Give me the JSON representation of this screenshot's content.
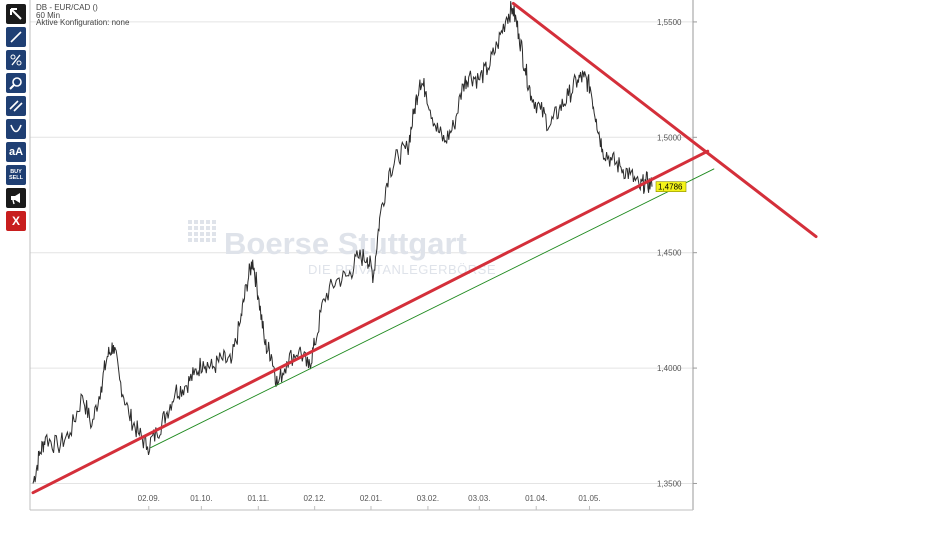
{
  "header": {
    "instrument": "DB - EUR/CAD ()",
    "interval": "60 Min",
    "config": "Aktive Konfiguration: none"
  },
  "watermark": {
    "main": "Boerse Stuttgart",
    "sub": "DIE PRIVATANLEGERBÖRSE"
  },
  "toolbar": {
    "text_tool_label": "aA",
    "buy_label": "BUY",
    "sell_label": "SELL",
    "close_label": "X"
  },
  "chart_data": {
    "type": "line",
    "title": "DB - EUR/CAD ()",
    "interval": "60 Min",
    "ylim": [
      1.3385,
      1.5595
    ],
    "y_ticks": [
      {
        "value": 1.55,
        "label": "1,5500"
      },
      {
        "value": 1.5,
        "label": "1,5000"
      },
      {
        "value": 1.45,
        "label": "1,4500"
      },
      {
        "value": 1.4,
        "label": "1,4000"
      },
      {
        "value": 1.35,
        "label": "1,3500"
      }
    ],
    "x_ticks": [
      {
        "label": "02.09.",
        "t": 0.187
      },
      {
        "label": "01.10.",
        "t": 0.272
      },
      {
        "label": "01.11.",
        "t": 0.364
      },
      {
        "label": "02.12.",
        "t": 0.455
      },
      {
        "label": "02.01.",
        "t": 0.546
      },
      {
        "label": "03.02.",
        "t": 0.638
      },
      {
        "label": "03.03.",
        "t": 0.721
      },
      {
        "label": "01.04.",
        "t": 0.813
      },
      {
        "label": "01.05.",
        "t": 0.899
      }
    ],
    "grid": true,
    "last_value": {
      "value": 1.4786,
      "label": "1,4786"
    },
    "series": [
      {
        "type": "price",
        "color": "#2b2b2b",
        "points": [
          [
            0.0,
            1.35
          ],
          [
            0.01,
            1.362
          ],
          [
            0.02,
            1.37
          ],
          [
            0.04,
            1.366
          ],
          [
            0.06,
            1.372
          ],
          [
            0.08,
            1.388
          ],
          [
            0.095,
            1.375
          ],
          [
            0.11,
            1.392
          ],
          [
            0.12,
            1.405
          ],
          [
            0.13,
            1.41
          ],
          [
            0.14,
            1.395
          ],
          [
            0.155,
            1.38
          ],
          [
            0.17,
            1.372
          ],
          [
            0.185,
            1.366
          ],
          [
            0.2,
            1.372
          ],
          [
            0.215,
            1.38
          ],
          [
            0.23,
            1.39
          ],
          [
            0.245,
            1.392
          ],
          [
            0.26,
            1.397
          ],
          [
            0.275,
            1.403
          ],
          [
            0.29,
            1.4
          ],
          [
            0.305,
            1.404
          ],
          [
            0.32,
            1.402
          ],
          [
            0.335,
            1.42
          ],
          [
            0.345,
            1.436
          ],
          [
            0.355,
            1.447
          ],
          [
            0.365,
            1.43
          ],
          [
            0.375,
            1.41
          ],
          [
            0.385,
            1.406
          ],
          [
            0.395,
            1.393
          ],
          [
            0.41,
            1.403
          ],
          [
            0.43,
            1.408
          ],
          [
            0.445,
            1.4
          ],
          [
            0.455,
            1.41
          ],
          [
            0.47,
            1.43
          ],
          [
            0.49,
            1.438
          ],
          [
            0.51,
            1.44
          ],
          [
            0.525,
            1.448
          ],
          [
            0.54,
            1.448
          ],
          [
            0.55,
            1.44
          ],
          [
            0.56,
            1.465
          ],
          [
            0.575,
            1.485
          ],
          [
            0.59,
            1.492
          ],
          [
            0.605,
            1.495
          ],
          [
            0.615,
            1.51
          ],
          [
            0.625,
            1.525
          ],
          [
            0.635,
            1.52
          ],
          [
            0.65,
            1.505
          ],
          [
            0.665,
            1.498
          ],
          [
            0.68,
            1.505
          ],
          [
            0.695,
            1.523
          ],
          [
            0.705,
            1.527
          ],
          [
            0.72,
            1.525
          ],
          [
            0.735,
            1.53
          ],
          [
            0.75,
            1.54
          ],
          [
            0.765,
            1.552
          ],
          [
            0.775,
            1.556
          ],
          [
            0.785,
            1.545
          ],
          [
            0.795,
            1.53
          ],
          [
            0.805,
            1.518
          ],
          [
            0.82,
            1.512
          ],
          [
            0.835,
            1.505
          ],
          [
            0.85,
            1.512
          ],
          [
            0.865,
            1.518
          ],
          [
            0.88,
            1.525
          ],
          [
            0.89,
            1.526
          ],
          [
            0.9,
            1.522
          ],
          [
            0.91,
            1.508
          ],
          [
            0.92,
            1.495
          ],
          [
            0.935,
            1.49
          ],
          [
            0.95,
            1.487
          ],
          [
            0.965,
            1.484
          ],
          [
            0.98,
            1.478
          ],
          [
            0.99,
            1.481
          ],
          [
            1.0,
            1.4786
          ]
        ]
      }
    ],
    "trendlines": [
      {
        "name": "support-trendline",
        "color": "#d42f3a",
        "points": [
          [
            0.0,
            1.346
          ],
          [
            1.09,
            1.494
          ]
        ]
      },
      {
        "name": "resistance-trendline",
        "color": "#d42f3a",
        "points": [
          [
            0.776,
            1.558
          ],
          [
            1.265,
            1.457
          ]
        ]
      },
      {
        "name": "channel-line",
        "color": "#1f8a1f",
        "points": [
          [
            0.19,
            1.3655
          ],
          [
            1.1,
            1.4863
          ]
        ]
      }
    ]
  }
}
